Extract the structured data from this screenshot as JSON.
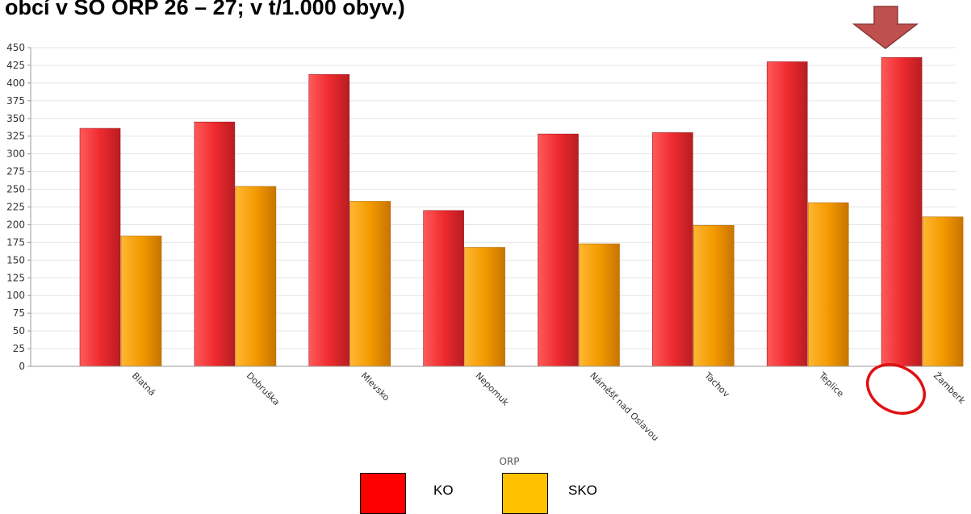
{
  "title": "obcí v SO ORP 26 – 27; v t/1.000 obyv.)",
  "colors": {
    "ko": "#e8272b",
    "sko": "#f39a00",
    "grid": "#e4e4e4",
    "arrow": "#c0504d",
    "circle": "#e01010"
  },
  "legend": {
    "ko_label": "KO",
    "sko_label": "SKO",
    "ko_color": "#ff0000",
    "sko_color": "#ffc000"
  },
  "chart_data": {
    "type": "bar",
    "xlabel": "ORP",
    "ylabel": "",
    "ylim": [
      0,
      450
    ],
    "yticks": [
      0,
      25,
      50,
      75,
      100,
      125,
      150,
      175,
      200,
      225,
      250,
      275,
      300,
      325,
      350,
      375,
      400,
      425,
      450
    ],
    "categories": [
      "Blatná",
      "Dobruška",
      "Mlevsko",
      "Nepomuk",
      "Náměšť nad Oslavou",
      "Tachov",
      "Teplice",
      "Žamberk"
    ],
    "series": [
      {
        "name": "KO",
        "values": [
          336,
          345,
          412,
          220,
          328,
          330,
          430,
          436
        ]
      },
      {
        "name": "SKO",
        "values": [
          184,
          254,
          233,
          168,
          173,
          199,
          231,
          211
        ]
      }
    ],
    "highlight": "Žamberk",
    "grid": true
  }
}
